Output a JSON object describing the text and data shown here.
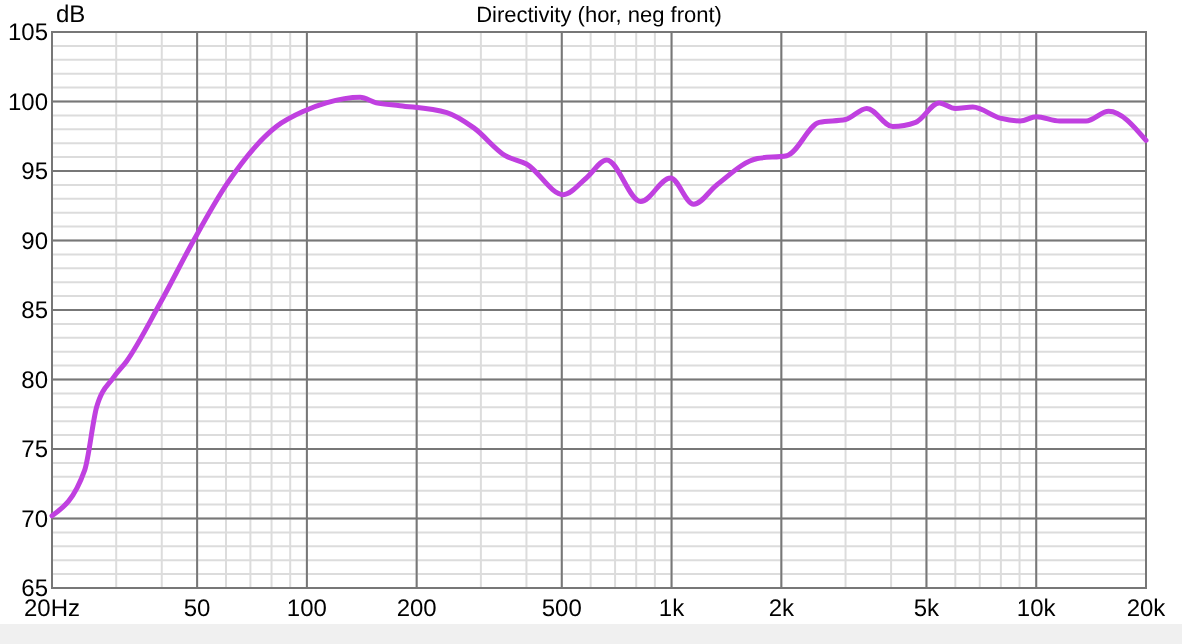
{
  "chart_data": {
    "type": "line",
    "title": "Directivity (hor, neg front)",
    "ylabel": "dB",
    "log": "x",
    "grid": true,
    "xlim": [
      20,
      20000
    ],
    "xticks": [
      {
        "value": 20,
        "label": "20Hz"
      },
      50,
      100,
      200,
      500,
      {
        "value": 1000,
        "label": "1k"
      },
      {
        "value": 2000,
        "label": "2k"
      },
      {
        "value": 5000,
        "label": "5k"
      },
      {
        "value": 10000,
        "label": "10k"
      },
      {
        "value": 20000,
        "label": "20k"
      }
    ],
    "ylim": [
      65,
      105
    ],
    "yticks": [
      65,
      70,
      75,
      80,
      85,
      90,
      95,
      100,
      105
    ],
    "series": [
      {
        "color": "#c040e0",
        "x": [
          20,
          24.6,
          26.5,
          29.4,
          32,
          39.6,
          48.9,
          60.1,
          82.5,
          98,
          113,
          140,
          155,
          180,
          242,
          287,
          350,
          400,
          505,
          584,
          664,
          823,
          993,
          1150,
          1330,
          1720,
          2070,
          2540,
          3000,
          3430,
          4040,
          4670,
          5420,
          6000,
          6700,
          7960,
          9040,
          10000,
          11600,
          13700,
          15800,
          20000
        ],
        "values": [
          70.2,
          73.5,
          78,
          80.1,
          81.3,
          85.5,
          90,
          94,
          98.2,
          99.3,
          99.9,
          100.3,
          99.9,
          99.7,
          99.2,
          98.1,
          96.1,
          95.5,
          93.3,
          94.5,
          95.8,
          92.8,
          94.5,
          92.6,
          94,
          95.9,
          96.1,
          98.5,
          98.7,
          99.5,
          98.2,
          98.5,
          99.9,
          99.5,
          99.6,
          98.8,
          98.6,
          98.9,
          98.6,
          98.6,
          99.3,
          97.2
        ]
      }
    ]
  }
}
